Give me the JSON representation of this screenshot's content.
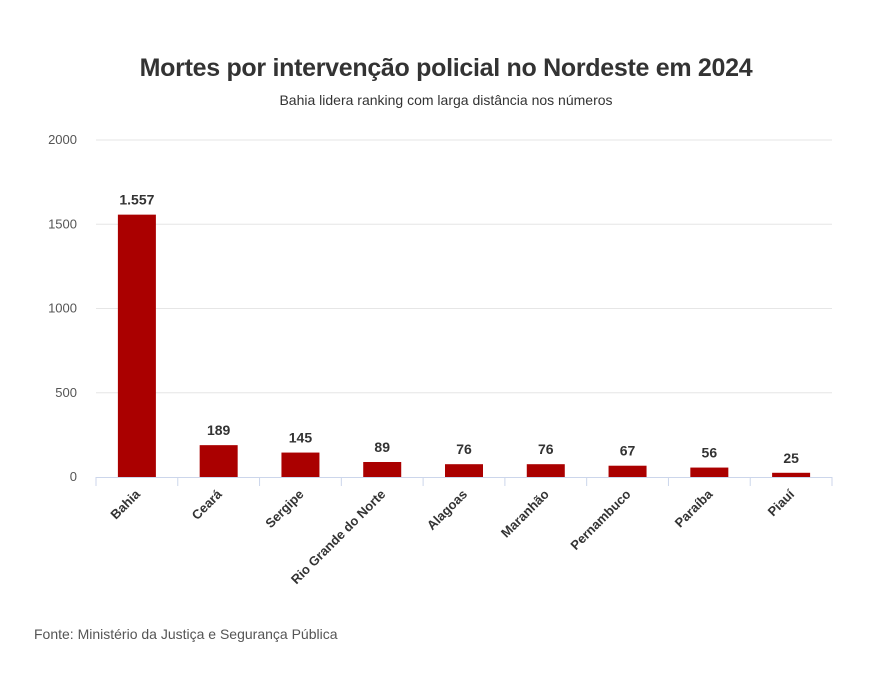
{
  "chart_data": {
    "type": "bar",
    "title": "Mortes por intervenção policial no Nordeste em 2024",
    "subtitle": "Bahia lidera ranking com larga distância nos números",
    "categories": [
      "Bahia",
      "Ceará",
      "Sergipe",
      "Rio Grande do Norte",
      "Alagoas",
      "Maranhão",
      "Pernambuco",
      "Paraíba",
      "Piauí"
    ],
    "values": [
      1557,
      189,
      145,
      89,
      76,
      76,
      67,
      56,
      25
    ],
    "value_labels": [
      "1.557",
      "189",
      "145",
      "89",
      "76",
      "76",
      "67",
      "56",
      "25"
    ],
    "yticks": [
      0,
      500,
      1000,
      1500,
      2000
    ],
    "ylim": [
      0,
      2000
    ],
    "xlabel": "",
    "ylabel": "",
    "grid": true,
    "bar_color": "#aa0000",
    "source": "Fonte: Ministério da Justiça e Segurança Pública"
  }
}
